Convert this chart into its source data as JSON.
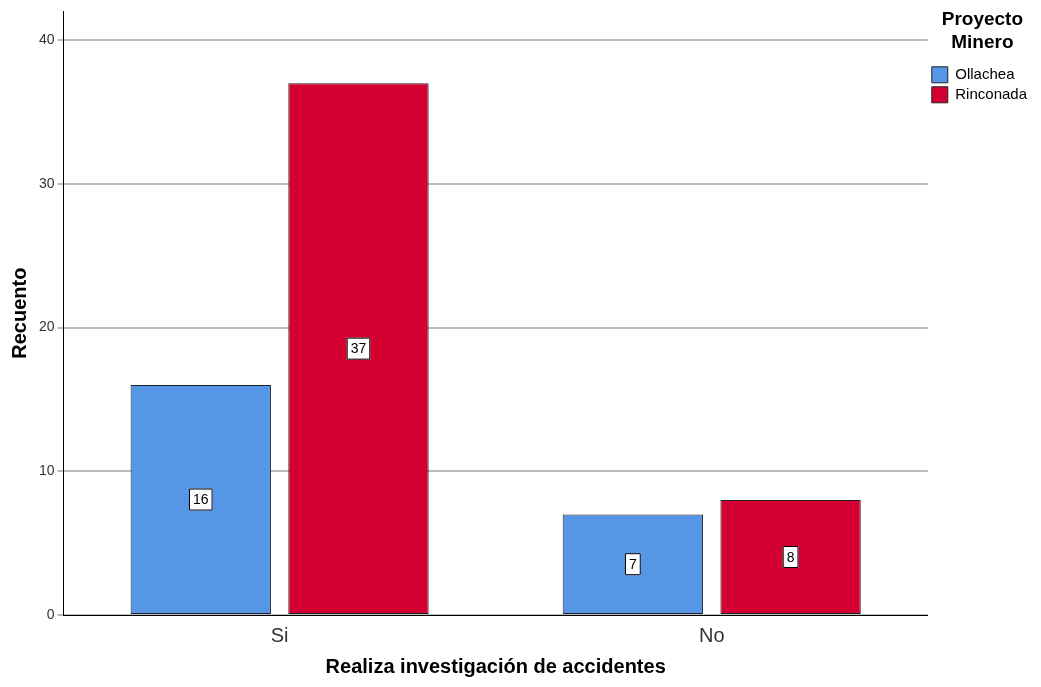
{
  "chart_data": {
    "type": "bar",
    "xlabel": "Realiza investigación de accidentes",
    "ylabel": "Recuento",
    "legend_title": "Proyecto Minero",
    "categories": [
      "Si",
      "No"
    ],
    "series": [
      {
        "name": "Ollachea",
        "color": "#5596e6",
        "values": [
          16,
          7
        ]
      },
      {
        "name": "Rinconada",
        "color": "#d50032",
        "values": [
          37,
          8
        ]
      }
    ],
    "ylim": [
      0,
      42
    ],
    "yticks": [
      0,
      10,
      20,
      30,
      40
    ],
    "grid": "y",
    "legend": "top right",
    "data_labels": true
  }
}
